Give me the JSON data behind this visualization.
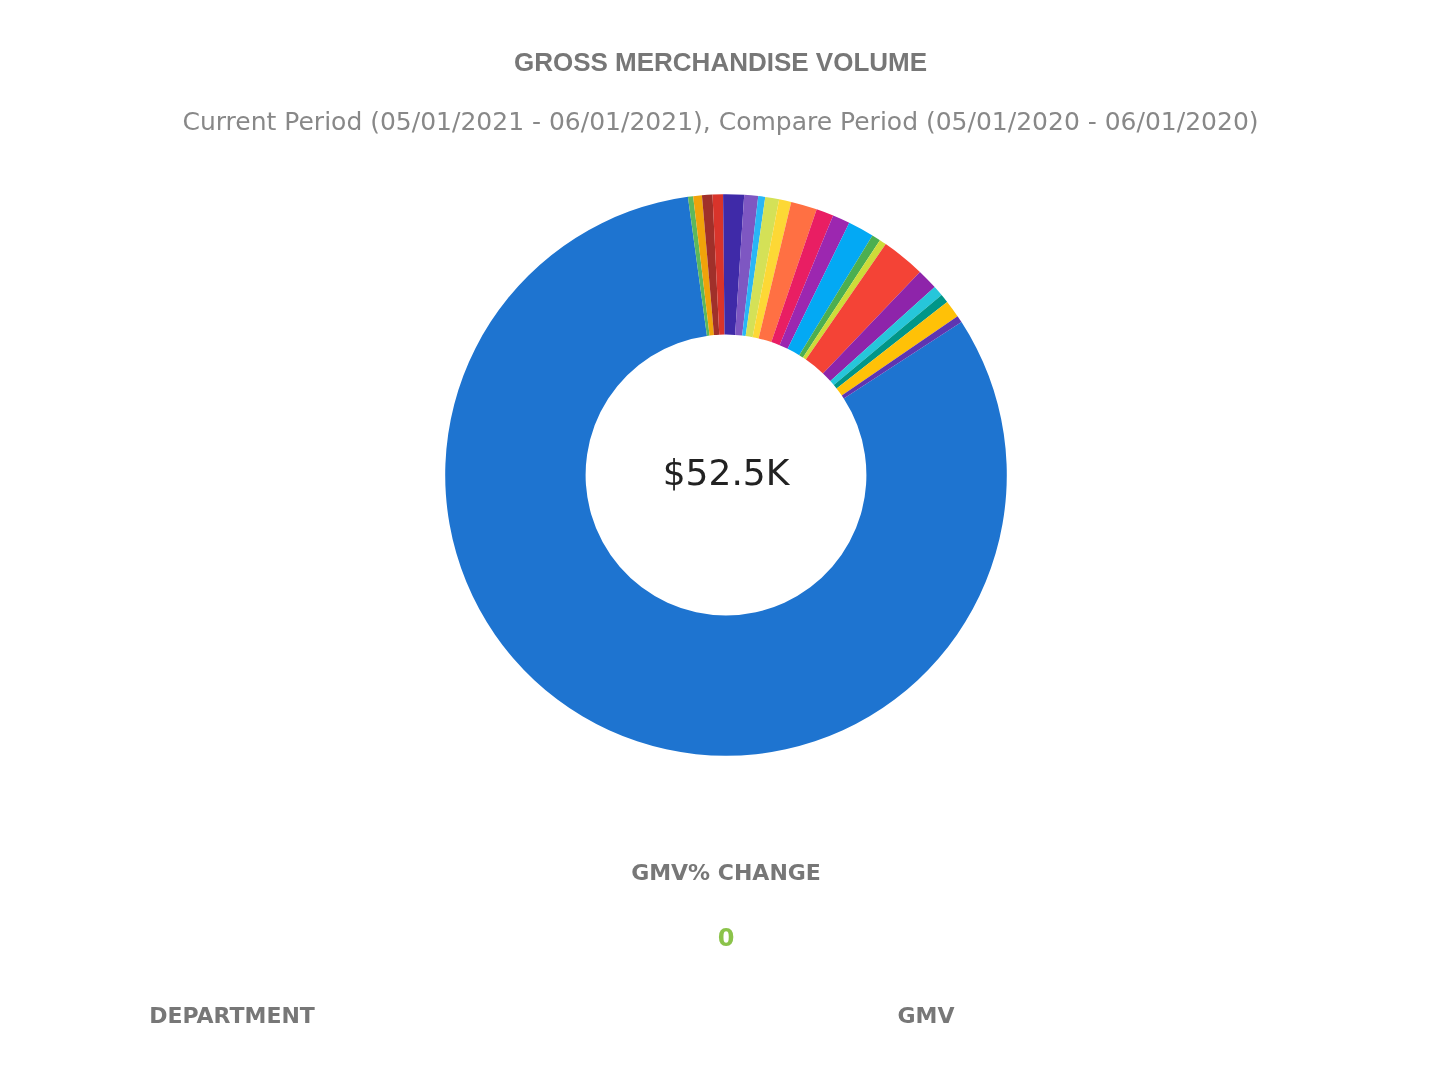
{
  "chart_data": {
    "type": "donut",
    "title": "GROSS MERCHANDISE VOLUME",
    "subtitle": "Current Period (05/01/2021 - 06/01/2021), Compare Period (05/01/2020 - 06/01/2020)",
    "categories": [
      null,
      null,
      null,
      null,
      null,
      null,
      null,
      null,
      null,
      null,
      null,
      null,
      null,
      null,
      null,
      null,
      null,
      null,
      null,
      null,
      null,
      null
    ],
    "values": [
      82.0,
      0.3,
      0.5,
      0.6,
      0.6,
      1.2,
      0.8,
      0.4,
      0.8,
      0.7,
      1.5,
      1.0,
      1.0,
      1.5,
      0.5,
      0.4,
      2.5,
      1.2,
      0.6,
      0.5,
      1.0,
      0.4
    ],
    "colors": [
      "#1e74d0",
      "#5cb85c",
      "#f0a30a",
      "#a0302a",
      "#d9342b",
      "#3f2aa8",
      "#7e57c2",
      "#29b6f6",
      "#d4e157",
      "#fdd835",
      "#ff7043",
      "#e91e63",
      "#9c27b0",
      "#03a9f4",
      "#4caf50",
      "#cddc39",
      "#f44336",
      "#8e24aa",
      "#26c6da",
      "#009688",
      "#ffc107",
      "#5e35b1"
    ],
    "annotations": [
      "$52.5K",
      "GMV% CHANGE",
      "0",
      "DEPARTMENT",
      "GMV"
    ]
  }
}
